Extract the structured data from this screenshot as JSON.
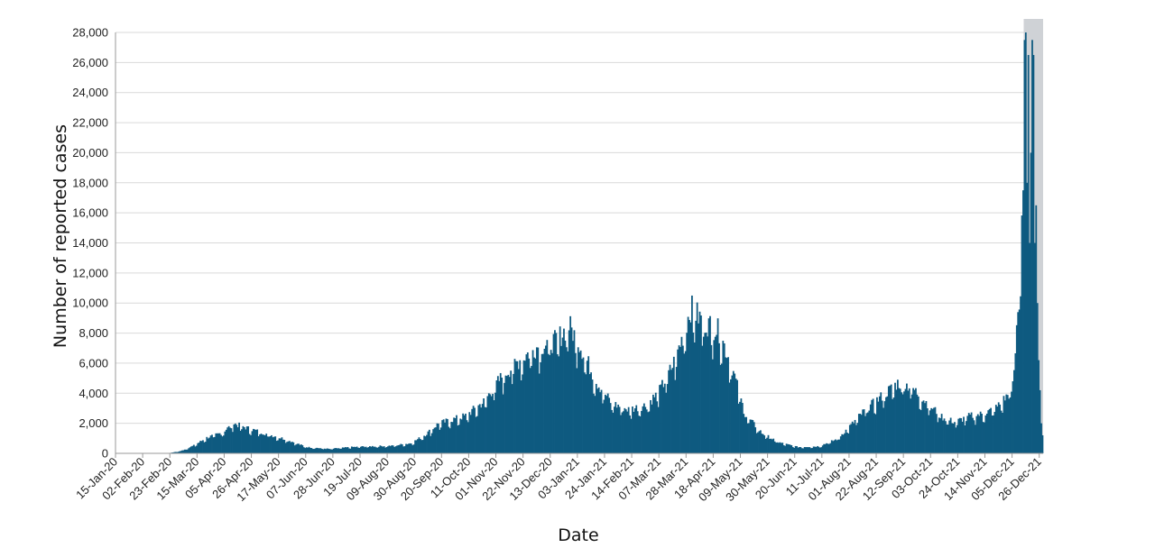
{
  "chart_data": {
    "type": "bar",
    "title": "",
    "xlabel": "Date",
    "ylabel": "Number of reported cases",
    "ylim": [
      0,
      28000
    ],
    "yticks": [
      0,
      2000,
      4000,
      6000,
      8000,
      10000,
      12000,
      14000,
      16000,
      18000,
      20000,
      22000,
      24000,
      26000,
      28000
    ],
    "ytick_labels": [
      "0",
      "2,000",
      "4,000",
      "6,000",
      "8,000",
      "10,000",
      "12,000",
      "14,000",
      "16,000",
      "18,000",
      "20,000",
      "22,000",
      "24,000",
      "26,000",
      "28,000"
    ],
    "xtick_labels": [
      "15-Jan-20",
      "02-Feb-20",
      "23-Feb-20",
      "15-Mar-20",
      "05-Apr-20",
      "26-Apr-20",
      "17-May-20",
      "07-Jun-20",
      "28-Jun-20",
      "19-Jul-20",
      "09-Aug-20",
      "30-Aug-20",
      "20-Sep-20",
      "11-Oct-20",
      "01-Nov-20",
      "22-Nov-20",
      "13-Dec-20",
      "03-Jan-21",
      "24-Jan-21",
      "14-Feb-21",
      "07-Mar-21",
      "28-Mar-21",
      "18-Apr-21",
      "09-May-21",
      "30-May-21",
      "20-Jun-21",
      "11-Jul-21",
      "01-Aug-21",
      "22-Aug-21",
      "12-Sep-21",
      "03-Oct-21",
      "24-Oct-21",
      "14-Nov-21",
      "05-Dec-21",
      "26-Dec-21"
    ],
    "x_start": "2020-01-15",
    "x_end": "2021-12-31",
    "grid": true,
    "highlight_region": {
      "from": "2021-12-17",
      "to": "2021-12-31",
      "color": "#cfd2d6"
    },
    "colors": {
      "bars": "#0e5a80",
      "grid": "#d9d9d9",
      "axis": "#999999"
    },
    "series": [
      {
        "name": "",
        "keypoints": [
          [
            "2020-01-15",
            0
          ],
          [
            "2020-02-25",
            20
          ],
          [
            "2020-03-05",
            150
          ],
          [
            "2020-03-15",
            500
          ],
          [
            "2020-03-25",
            1000
          ],
          [
            "2020-04-05",
            1300
          ],
          [
            "2020-04-15",
            1900
          ],
          [
            "2020-04-26",
            1600
          ],
          [
            "2020-05-10",
            1250
          ],
          [
            "2020-05-25",
            900
          ],
          [
            "2020-06-10",
            400
          ],
          [
            "2020-06-28",
            280
          ],
          [
            "2020-07-15",
            400
          ],
          [
            "2020-07-30",
            450
          ],
          [
            "2020-08-15",
            480
          ],
          [
            "2020-08-30",
            650
          ],
          [
            "2020-09-10",
            1200
          ],
          [
            "2020-09-20",
            1900
          ],
          [
            "2020-10-11",
            2400
          ],
          [
            "2020-10-25",
            3300
          ],
          [
            "2020-11-08",
            4900
          ],
          [
            "2020-11-22",
            6000
          ],
          [
            "2020-12-05",
            6800
          ],
          [
            "2020-12-20",
            7200
          ],
          [
            "2020-12-30",
            8200
          ],
          [
            "2021-01-07",
            7000
          ],
          [
            "2021-01-20",
            4600
          ],
          [
            "2021-02-01",
            3200
          ],
          [
            "2021-02-14",
            2800
          ],
          [
            "2021-02-28",
            3100
          ],
          [
            "2021-03-10",
            4000
          ],
          [
            "2021-03-20",
            5600
          ],
          [
            "2021-03-28",
            7500
          ],
          [
            "2021-04-03",
            9300
          ],
          [
            "2021-04-12",
            8500
          ],
          [
            "2021-04-25",
            7800
          ],
          [
            "2021-05-05",
            5500
          ],
          [
            "2021-05-15",
            2500
          ],
          [
            "2021-05-28",
            1300
          ],
          [
            "2021-06-10",
            700
          ],
          [
            "2021-06-25",
            400
          ],
          [
            "2021-07-11",
            450
          ],
          [
            "2021-07-25",
            900
          ],
          [
            "2021-08-05",
            1800
          ],
          [
            "2021-08-15",
            2700
          ],
          [
            "2021-08-28",
            3600
          ],
          [
            "2021-09-10",
            4500
          ],
          [
            "2021-09-20",
            4300
          ],
          [
            "2021-10-03",
            3200
          ],
          [
            "2021-10-15",
            2300
          ],
          [
            "2021-10-24",
            2000
          ],
          [
            "2021-11-05",
            2400
          ],
          [
            "2021-11-14",
            2500
          ],
          [
            "2021-11-25",
            2900
          ],
          [
            "2021-12-05",
            3800
          ],
          [
            "2021-12-09",
            5000
          ],
          [
            "2021-12-12",
            9500
          ],
          [
            "2021-12-14",
            13000
          ],
          [
            "2021-12-16",
            17500
          ],
          [
            "2021-12-17",
            27500
          ],
          [
            "2021-12-18",
            28200
          ],
          [
            "2021-12-19",
            18000
          ],
          [
            "2021-12-20",
            26500
          ],
          [
            "2021-12-21",
            14000
          ],
          [
            "2021-12-22",
            20000
          ],
          [
            "2021-12-23",
            27500
          ],
          [
            "2021-12-24",
            26500
          ],
          [
            "2021-12-25",
            14000
          ],
          [
            "2021-12-26",
            16500
          ],
          [
            "2021-12-27",
            10000
          ],
          [
            "2021-12-28",
            6200
          ],
          [
            "2021-12-29",
            4200
          ],
          [
            "2021-12-30",
            2000
          ],
          [
            "2021-12-31",
            1200
          ]
        ]
      }
    ]
  }
}
